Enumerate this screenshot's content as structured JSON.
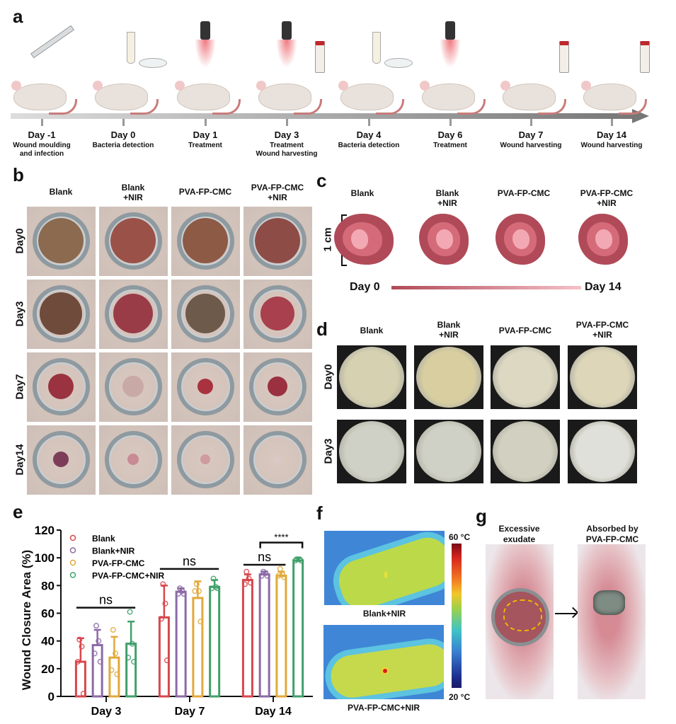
{
  "panels": {
    "a": {
      "label": "a",
      "timeline": [
        {
          "day": "Day -1",
          "desc": [
            "Wound moulding",
            "and infection"
          ]
        },
        {
          "day": "Day 0",
          "desc": [
            "Bacteria detection"
          ]
        },
        {
          "day": "Day 1",
          "desc": [
            "Treatment"
          ]
        },
        {
          "day": "Day 3",
          "desc": [
            "Treatment",
            "Wound harvesting"
          ]
        },
        {
          "day": "Day 4",
          "desc": [
            "Bacteria detection"
          ]
        },
        {
          "day": "Day 6",
          "desc": [
            "Treatment"
          ]
        },
        {
          "day": "Day 7",
          "desc": [
            "Wound harvesting"
          ]
        },
        {
          "day": "Day 14",
          "desc": [
            "Wound harvesting"
          ]
        }
      ]
    },
    "b": {
      "label": "b",
      "columns": [
        [
          "Blank"
        ],
        [
          "Blank",
          "+NIR"
        ],
        [
          "PVA-FP-CMC"
        ],
        [
          "PVA-FP-CMC",
          "+NIR"
        ]
      ],
      "rows": [
        "Day0",
        "Day3",
        "Day7",
        "Day14"
      ]
    },
    "c": {
      "label": "c",
      "columns": [
        [
          "Blank"
        ],
        [
          "Blank",
          "+NIR"
        ],
        [
          "PVA-FP-CMC"
        ],
        [
          "PVA-FP-CMC",
          "+NIR"
        ]
      ],
      "scale": "1 cm",
      "start": "Day 0",
      "end": "Day 14"
    },
    "d": {
      "label": "d",
      "columns": [
        [
          "Blank"
        ],
        [
          "Blank",
          "+NIR"
        ],
        [
          "PVA-FP-CMC"
        ],
        [
          "PVA-FP-CMC",
          "+NIR"
        ]
      ],
      "rows": [
        "Day0",
        "Day3"
      ]
    },
    "e": {
      "label": "e"
    },
    "f": {
      "label": "f",
      "image_labels": [
        "Blank+NIR",
        "PVA-FP-CMC+NIR"
      ],
      "colorbar_max": "60 °C",
      "colorbar_min": "20 °C"
    },
    "g": {
      "label": "g",
      "left_title": [
        "Excessive",
        "exudate"
      ],
      "right_title": [
        "Absorbed by",
        "PVA-FP-CMC"
      ]
    }
  },
  "chart_data": {
    "type": "bar",
    "title": "",
    "xlabel": "",
    "ylabel": "Wound Closure Area (%)",
    "ylim": [
      0,
      120
    ],
    "yticks": [
      0,
      20,
      40,
      60,
      80,
      100,
      120
    ],
    "categories": [
      "Day 3",
      "Day 7",
      "Day 14"
    ],
    "legend_position": "top-left",
    "series": [
      {
        "name": "Blank",
        "color": "#d9464d",
        "values": [
          25,
          57,
          84
        ],
        "error": [
          17,
          23,
          4
        ],
        "points": [
          [
            41,
            36,
            25,
            2
          ],
          [
            81,
            67,
            56,
            26
          ],
          [
            90,
            85,
            81,
            82
          ]
        ]
      },
      {
        "name": "Blank+NIR",
        "color": "#8c6aa6",
        "values": [
          37,
          75.5,
          88
        ],
        "error": [
          11,
          2.5,
          2
        ],
        "points": [
          [
            51,
            40,
            31,
            25
          ],
          [
            78,
            76,
            74,
            74
          ],
          [
            90,
            89,
            87,
            87
          ]
        ]
      },
      {
        "name": "PVA-FP-CMC",
        "color": "#e2a93a",
        "values": [
          28,
          71,
          87
        ],
        "error": [
          15,
          12,
          3
        ],
        "points": [
          [
            48,
            31,
            19,
            16
          ],
          [
            81,
            76,
            76,
            54
          ],
          [
            92,
            88,
            87,
            86
          ]
        ]
      },
      {
        "name": "PVA-FP-CMC+NIR",
        "color": "#3fa06a",
        "values": [
          38,
          79,
          98
        ],
        "error": [
          16,
          5,
          2
        ],
        "points": [
          [
            61,
            38,
            28,
            25
          ],
          [
            85,
            79,
            78,
            78
          ],
          [
            99,
            99,
            98,
            98
          ]
        ]
      }
    ],
    "annotations": [
      {
        "text": "ns",
        "group": "Day 3",
        "between": [
          "Blank",
          "PVA-FP-CMC+NIR"
        ],
        "y": 64
      },
      {
        "text": "ns",
        "group": "Day 7",
        "between": [
          "Blank",
          "PVA-FP-CMC+NIR"
        ],
        "y": 92
      },
      {
        "text": "ns",
        "group": "Day 14",
        "between": [
          "Blank",
          "PVA-FP-CMC"
        ],
        "y": 95
      },
      {
        "text": "****",
        "group": "Day 14",
        "between": [
          "Blank+NIR",
          "PVA-FP-CMC+NIR"
        ],
        "y": 111
      }
    ]
  }
}
